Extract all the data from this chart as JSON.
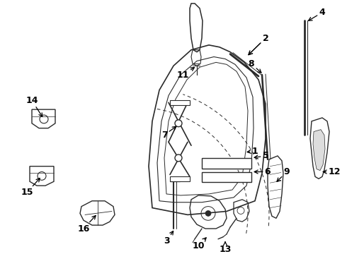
{
  "bg_color": "#ffffff",
  "line_color": "#2a2a2a",
  "fig_w": 4.9,
  "fig_h": 3.6,
  "dpi": 100
}
